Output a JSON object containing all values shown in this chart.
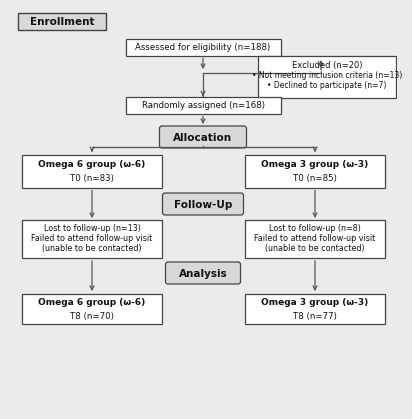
{
  "bg_color": "#ebebeb",
  "box_face": "#ffffff",
  "box_edge": "#444444",
  "label_face": "#d8d8d8",
  "text_color": "#111111",
  "arrow_color": "#555555",
  "enrollment_label": "Enrollment",
  "eligibility_text": "Assessed for eligibility (n=188)",
  "excluded_line1": "Excluded (n=20)",
  "excluded_line2": "• Not meeting inclusion criteria (n=13)",
  "excluded_line3": "• Declined to participate (n=7)",
  "randomly_text": "Randomly assigned (n=168)",
  "allocation_label": "Allocation",
  "omega6_alloc_line1": "Omega 6 group (ω-6)",
  "omega6_alloc_line2": "T0 (n=83)",
  "omega3_alloc_line1": "Omega 3 group (ω-3)",
  "omega3_alloc_line2": "T0 (n=85)",
  "followup_label": "Follow-Up",
  "omega6_fu_line1": "Lost to follow-up (n=13)",
  "omega6_fu_line2": "Failed to attend follow-up visit",
  "omega6_fu_line3": "(unable to be contacted)",
  "omega3_fu_line1": "Lost to follow-up (n=8)",
  "omega3_fu_line2": "Failed to attend follow-up visit",
  "omega3_fu_line3": "(unable to be contacted)",
  "analysis_label": "Analysis",
  "omega6_an_line1": "Omega 6 group (ω-6)",
  "omega6_an_line2": "T8 (n=70)",
  "omega3_an_line1": "Omega 3 group (ω-3)",
  "omega3_an_line2": "T8 (n=77)"
}
